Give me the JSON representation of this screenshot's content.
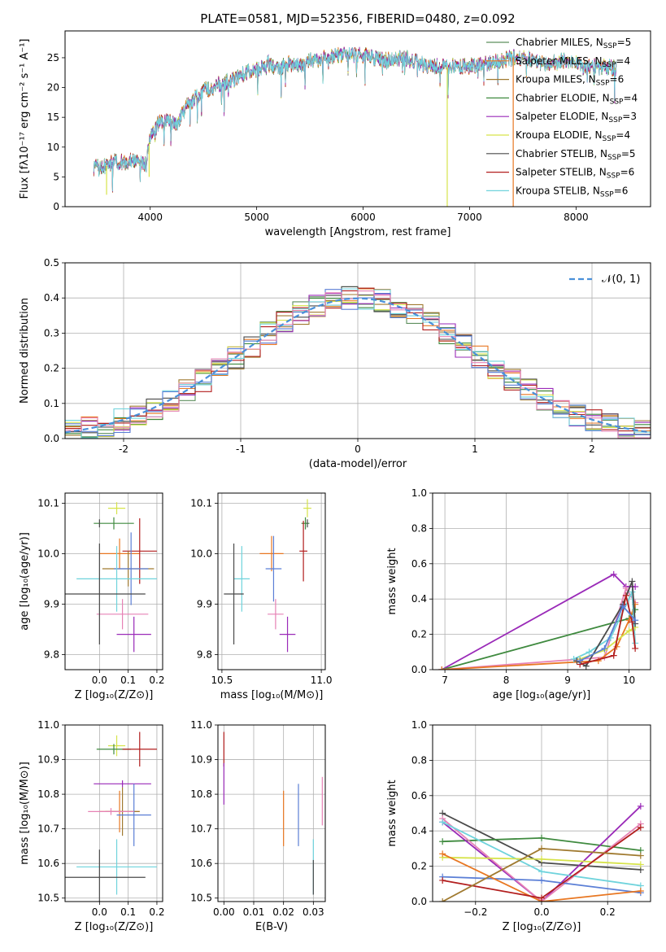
{
  "colors": {
    "grid": "#b0b0b0",
    "gaussian": "#4a90d9",
    "series": [
      "#5e8f5e",
      "#e87722",
      "#a07a30",
      "#3f8a3f",
      "#9a2ab8",
      "#d6e34a",
      "#4a4a4a",
      "#b21e1e",
      "#6fd3dc",
      "#5b7fd6",
      "#e682b5"
    ]
  },
  "chart_data": [
    {
      "id": "spectrum",
      "type": "line",
      "title": "PLATE=0581, MJD=52356, FIBERID=0480, z=0.092",
      "xlabel": "wavelength [Angstrom, rest frame]",
      "ylabel": "Flux [fλ10⁻¹⁷ erg cm⁻² s⁻¹ A⁻¹]",
      "xlim": [
        3200,
        8700
      ],
      "ylim": [
        0,
        29.5
      ],
      "xticks": [
        4000,
        5000,
        6000,
        7000,
        8000
      ],
      "yticks": [
        0,
        5,
        10,
        15,
        20,
        25
      ],
      "grid": false,
      "legend_position": "top-right",
      "continuum": [
        [
          3470,
          6.5
        ],
        [
          3550,
          6.5
        ],
        [
          3650,
          7.5
        ],
        [
          3760,
          7.5
        ],
        [
          3900,
          8
        ],
        [
          3960,
          7
        ],
        [
          4000,
          12
        ],
        [
          4100,
          14.5
        ],
        [
          4250,
          14
        ],
        [
          4350,
          17
        ],
        [
          4500,
          19.5
        ],
        [
          4650,
          20.5
        ],
        [
          4800,
          21.5
        ],
        [
          4900,
          22.5
        ],
        [
          5000,
          23
        ],
        [
          5100,
          24
        ],
        [
          5200,
          23
        ],
        [
          5300,
          24
        ],
        [
          5400,
          23.5
        ],
        [
          5500,
          24.5
        ],
        [
          5700,
          25
        ],
        [
          5800,
          25.5
        ],
        [
          5900,
          25.5
        ],
        [
          6000,
          25.5
        ],
        [
          6200,
          24.5
        ],
        [
          6400,
          25
        ],
        [
          6600,
          23.5
        ],
        [
          6800,
          23.5
        ],
        [
          7000,
          23.5
        ],
        [
          7200,
          24
        ],
        [
          7400,
          25
        ],
        [
          7500,
          25
        ],
        [
          7700,
          24
        ],
        [
          7900,
          24.5
        ],
        [
          8100,
          23.5
        ],
        [
          8300,
          23.5
        ],
        [
          8380,
          23
        ]
      ],
      "series": [
        {
          "name": "Chabrier MILES, N<sub>SSP</sub>=5",
          "color_index": 0
        },
        {
          "name": "Salpeter MILES, N<sub>SSP</sub>=4",
          "color_index": 1
        },
        {
          "name": "Kroupa MILES, N<sub>SSP</sub>=6",
          "color_index": 2
        },
        {
          "name": "Chabrier ELODIE, N<sub>SSP</sub>=4",
          "color_index": 3
        },
        {
          "name": "Salpeter ELODIE, N<sub>SSP</sub>=3",
          "color_index": 4
        },
        {
          "name": "Kroupa ELODIE, N<sub>SSP</sub>=4",
          "color_index": 5
        },
        {
          "name": "Chabrier STELIB, N<sub>SSP</sub>=5",
          "color_index": 6
        },
        {
          "name": "Salpeter STELIB, N<sub>SSP</sub>=6",
          "color_index": 7
        },
        {
          "name": "Kroupa STELIB, N<sub>SSP</sub>=6",
          "color_index": 8
        }
      ]
    },
    {
      "id": "residuals",
      "type": "step",
      "xlabel": "(data-model)/error",
      "ylabel": "Normed distribution",
      "xlim": [
        -2.5,
        2.5
      ],
      "ylim": [
        0,
        0.5
      ],
      "xticks": [
        -2,
        -1,
        0,
        1,
        2
      ],
      "yticks": [
        0.0,
        0.1,
        0.2,
        0.3,
        0.4,
        0.5
      ],
      "ytick_labels": [
        "0.0",
        "0.1",
        "0.2",
        "0.3",
        "0.4",
        "0.5"
      ],
      "grid": true,
      "legend_position": "top-right",
      "legend": "𝒩(0, 1)",
      "bins": 36,
      "histogram_colors": [
        0,
        1,
        2,
        3,
        4,
        5,
        6,
        7,
        8,
        9,
        10
      ]
    },
    {
      "id": "age-vs-Z",
      "type": "errorbar",
      "xlabel": "Z [log₁₀(Z/Z⊙)]",
      "ylabel": "age  [log₁₀(age/yr)]",
      "xlim": [
        -0.12,
        0.22
      ],
      "ylim": [
        9.77,
        10.12
      ],
      "xticks": [
        0.0,
        0.1,
        0.2
      ],
      "xtick_labels": [
        "0.0",
        "0.1",
        "0.2"
      ],
      "yticks": [
        9.8,
        9.9,
        10.0,
        10.1
      ],
      "ytick_labels": [
        "9.8",
        "9.9",
        "10.0",
        "10.1"
      ],
      "grid": true,
      "points": [
        {
          "x": 0.06,
          "y": 10.09,
          "xerr": 0.03,
          "yerr": 0.012,
          "c": 5
        },
        {
          "x": 0.05,
          "y": 10.06,
          "xerr": 0.07,
          "yerr": 0.012,
          "c": 3
        },
        {
          "x": 0.0,
          "y": 10.06,
          "xerr": 0.0,
          "yerr": 0.008,
          "c": 6
        },
        {
          "x": 0.07,
          "y": 10.0,
          "xerr": 0.07,
          "yerr": 0.03,
          "c": 1
        },
        {
          "x": 0.14,
          "y": 10.005,
          "xerr": 0.06,
          "yerr": 0.065,
          "c": 7
        },
        {
          "x": 0.1,
          "y": 9.97,
          "xerr": 0.09,
          "yerr": 0.035,
          "c": 2
        },
        {
          "x": 0.11,
          "y": 9.97,
          "xerr": 0.06,
          "yerr": 0.072,
          "c": 9
        },
        {
          "x": 0.06,
          "y": 9.95,
          "xerr": 0.14,
          "yerr": 0.065,
          "c": 8
        },
        {
          "x": 0.08,
          "y": 9.88,
          "xerr": 0.09,
          "yerr": 0.03,
          "c": 10
        },
        {
          "x": 0.0,
          "y": 9.92,
          "xerr": 0.16,
          "yerr": 0.1,
          "c": 6
        },
        {
          "x": 0.12,
          "y": 9.84,
          "xerr": 0.06,
          "yerr": 0.035,
          "c": 4
        }
      ]
    },
    {
      "id": "age-vs-mass",
      "type": "errorbar",
      "xlabel": "mass [log₁₀(M/M⊙)]",
      "ylabel": "",
      "xlim": [
        10.48,
        11.02
      ],
      "ylim": [
        9.77,
        10.12
      ],
      "xticks": [
        10.5,
        11.0
      ],
      "xtick_labels": [
        "10.5",
        "11.0"
      ],
      "yticks": [
        9.8,
        9.9,
        10.0,
        10.1
      ],
      "ytick_labels": [
        "9.8",
        "9.9",
        "10.0",
        "10.1"
      ],
      "grid": true,
      "points": [
        {
          "x": 10.93,
          "y": 10.09,
          "xerr": 0.02,
          "yerr": 0.018,
          "c": 5
        },
        {
          "x": 10.92,
          "y": 10.06,
          "xerr": 0.02,
          "yerr": 0.012,
          "c": 3
        },
        {
          "x": 10.93,
          "y": 10.06,
          "xerr": 0.0,
          "yerr": 0.008,
          "c": 6
        },
        {
          "x": 10.91,
          "y": 10.005,
          "xerr": 0.02,
          "yerr": 0.06,
          "c": 7
        },
        {
          "x": 10.75,
          "y": 10.0,
          "xerr": 0.06,
          "yerr": 0.035,
          "c": 1
        },
        {
          "x": 10.76,
          "y": 9.97,
          "xerr": 0.04,
          "yerr": 0.065,
          "c": 9
        },
        {
          "x": 10.6,
          "y": 9.95,
          "xerr": 0.04,
          "yerr": 0.065,
          "c": 8
        },
        {
          "x": 10.77,
          "y": 9.88,
          "xerr": 0.04,
          "yerr": 0.03,
          "c": 10
        },
        {
          "x": 10.56,
          "y": 9.92,
          "xerr": 0.05,
          "yerr": 0.1,
          "c": 6
        },
        {
          "x": 10.83,
          "y": 9.84,
          "xerr": 0.04,
          "yerr": 0.035,
          "c": 4
        }
      ]
    },
    {
      "id": "weight-vs-age",
      "type": "line",
      "xlabel": "age  [log₁₀(age/yr)]",
      "ylabel": "mass weight",
      "xlim": [
        6.8,
        10.35
      ],
      "ylim": [
        0.0,
        1.0
      ],
      "xticks": [
        7,
        8,
        9,
        10
      ],
      "yticks": [
        0.0,
        0.2,
        0.4,
        0.6,
        0.8,
        1.0
      ],
      "ytick_labels": [
        "0.0",
        "0.2",
        "0.4",
        "0.6",
        "0.8",
        "1.0"
      ],
      "grid": true,
      "series": [
        {
          "c": 4,
          "x": [
            6.95,
            9.75,
            9.95,
            10.1
          ],
          "y": [
            0.0,
            0.54,
            0.47,
            0.47
          ]
        },
        {
          "c": 3,
          "x": [
            6.95,
            10.0,
            10.1
          ],
          "y": [
            0.0,
            0.29,
            0.34
          ]
        },
        {
          "c": 10,
          "x": [
            6.95,
            9.6,
            9.95,
            10.1
          ],
          "y": [
            0.0,
            0.07,
            0.46,
            0.38
          ]
        },
        {
          "c": 1,
          "x": [
            6.95,
            9.5,
            9.8,
            10.0,
            10.1
          ],
          "y": [
            0.0,
            0.05,
            0.13,
            0.28,
            0.37
          ]
        },
        {
          "c": 8,
          "x": [
            9.1,
            9.35,
            9.7,
            10.05,
            10.1
          ],
          "y": [
            0.06,
            0.1,
            0.18,
            0.44,
            0.15
          ]
        },
        {
          "c": 5,
          "x": [
            9.2,
            9.6,
            10.0,
            10.1
          ],
          "y": [
            0.06,
            0.11,
            0.22,
            0.24
          ]
        },
        {
          "c": 6,
          "x": [
            9.15,
            9.3,
            9.9,
            10.05,
            10.1
          ],
          "y": [
            0.05,
            0.02,
            0.37,
            0.5,
            0.26
          ]
        },
        {
          "c": 7,
          "x": [
            9.2,
            9.75,
            9.95,
            10.05,
            10.1
          ],
          "y": [
            0.03,
            0.08,
            0.42,
            0.27,
            0.12
          ]
        },
        {
          "c": 9,
          "x": [
            9.2,
            9.6,
            9.9,
            10.1
          ],
          "y": [
            0.05,
            0.12,
            0.36,
            0.28
          ]
        }
      ]
    },
    {
      "id": "mass-vs-Z",
      "type": "errorbar",
      "xlabel": "Z [log₁₀(Z/Z⊙)]",
      "ylabel": "mass [log₁₀(M/M⊙)]",
      "xlim": [
        -0.12,
        0.22
      ],
      "ylim": [
        10.49,
        11.0
      ],
      "xticks": [
        0.0,
        0.1,
        0.2
      ],
      "xtick_labels": [
        "0.0",
        "0.1",
        "0.2"
      ],
      "yticks": [
        10.5,
        10.6,
        10.7,
        10.8,
        10.9,
        11.0
      ],
      "ytick_labels": [
        "10.5",
        "10.6",
        "10.7",
        "10.8",
        "10.9",
        "11.0"
      ],
      "grid": true,
      "points": [
        {
          "x": 0.06,
          "y": 10.94,
          "xerr": 0.03,
          "yerr": 0.03,
          "c": 5
        },
        {
          "x": 0.05,
          "y": 10.93,
          "xerr": 0.06,
          "yerr": 0.015,
          "c": 3
        },
        {
          "x": 0.14,
          "y": 10.93,
          "xerr": 0.06,
          "yerr": 0.05,
          "c": 7
        },
        {
          "x": 0.08,
          "y": 10.83,
          "xerr": 0.1,
          "yerr": 0.01,
          "c": 4
        },
        {
          "x": 0.07,
          "y": 10.75,
          "xerr": 0.07,
          "yerr": 0.06,
          "c": 1
        },
        {
          "x": 0.08,
          "y": 10.75,
          "xerr": 0.06,
          "yerr": 0.07,
          "c": 2
        },
        {
          "x": 0.12,
          "y": 10.74,
          "xerr": 0.06,
          "yerr": 0.09,
          "c": 9
        },
        {
          "x": 0.04,
          "y": 10.75,
          "xerr": 0.08,
          "yerr": 0.01,
          "c": 10
        },
        {
          "x": 0.06,
          "y": 10.59,
          "xerr": 0.14,
          "yerr": 0.08,
          "c": 8
        },
        {
          "x": 0.0,
          "y": 10.56,
          "xerr": 0.16,
          "yerr": 0.08,
          "c": 6
        }
      ]
    },
    {
      "id": "mass-vs-ebv",
      "type": "errorbar",
      "xlabel": "E(B-V)",
      "ylabel": "",
      "xlim": [
        -0.002,
        0.034
      ],
      "ylim": [
        10.49,
        11.0
      ],
      "xticks": [
        0.0,
        0.01,
        0.02,
        0.03
      ],
      "xtick_labels": [
        "0.00",
        "0.01",
        "0.02",
        "0.03"
      ],
      "yticks": [
        10.5,
        10.6,
        10.7,
        10.8,
        10.9,
        11.0
      ],
      "ytick_labels": [
        "10.5",
        "10.6",
        "10.7",
        "10.8",
        "10.9",
        "11.0"
      ],
      "grid": true,
      "points": [
        {
          "x": 0.0,
          "y": 10.93,
          "xerr": 0.0,
          "yerr": 0.05,
          "c": 7
        },
        {
          "x": 0.0,
          "y": 10.83,
          "xerr": 0.0,
          "yerr": 0.06,
          "c": 4
        },
        {
          "x": 0.02,
          "y": 10.73,
          "xerr": 0.0,
          "yerr": 0.08,
          "c": 1
        },
        {
          "x": 0.025,
          "y": 10.74,
          "xerr": 0.0,
          "yerr": 0.09,
          "c": 9
        },
        {
          "x": 0.033,
          "y": 10.78,
          "xerr": 0.0,
          "yerr": 0.07,
          "c": 10
        },
        {
          "x": 0.03,
          "y": 10.59,
          "xerr": 0.0,
          "yerr": 0.08,
          "c": 8
        },
        {
          "x": 0.03,
          "y": 10.56,
          "xerr": 0.0,
          "yerr": 0.05,
          "c": 6
        }
      ]
    },
    {
      "id": "weight-vs-Z",
      "type": "line",
      "xlabel": "Z [log₁₀(Z/Z⊙)]",
      "ylabel": "mass weight",
      "xlim": [
        -0.33,
        0.33
      ],
      "ylim": [
        0.0,
        1.0
      ],
      "xticks": [
        -0.2,
        0.0,
        0.2
      ],
      "xtick_labels": [
        "−0.2",
        "0.0",
        "0.2"
      ],
      "yticks": [
        0.0,
        0.2,
        0.4,
        0.6,
        0.8,
        1.0
      ],
      "ytick_labels": [
        "0.0",
        "0.2",
        "0.4",
        "0.6",
        "0.8",
        "1.0"
      ],
      "grid": true,
      "series": [
        {
          "c": 6,
          "x": [
            -0.3,
            0.0,
            0.3
          ],
          "y": [
            0.5,
            0.22,
            0.18
          ]
        },
        {
          "c": 3,
          "x": [
            -0.3,
            0.0,
            0.3
          ],
          "y": [
            0.34,
            0.36,
            0.29
          ]
        },
        {
          "c": 4,
          "x": [
            -0.3,
            0.0,
            0.3
          ],
          "y": [
            0.45,
            0.0,
            0.54
          ]
        },
        {
          "c": 10,
          "x": [
            -0.3,
            0.0,
            0.3
          ],
          "y": [
            0.47,
            0.0,
            0.44
          ]
        },
        {
          "c": 8,
          "x": [
            -0.3,
            0.0,
            0.3
          ],
          "y": [
            0.45,
            0.17,
            0.09
          ]
        },
        {
          "c": 5,
          "x": [
            -0.3,
            0.0,
            0.3
          ],
          "y": [
            0.25,
            0.24,
            0.21
          ]
        },
        {
          "c": 9,
          "x": [
            -0.3,
            0.0,
            0.3
          ],
          "y": [
            0.14,
            0.12,
            0.05
          ]
        },
        {
          "c": 1,
          "x": [
            -0.3,
            0.0,
            0.3
          ],
          "y": [
            0.27,
            0.0,
            0.06
          ]
        },
        {
          "c": 7,
          "x": [
            -0.3,
            0.0,
            0.3
          ],
          "y": [
            0.12,
            0.02,
            0.42
          ]
        },
        {
          "c": 2,
          "x": [
            -0.3,
            0.0,
            0.3
          ],
          "y": [
            0.0,
            0.3,
            0.26
          ]
        }
      ]
    }
  ]
}
